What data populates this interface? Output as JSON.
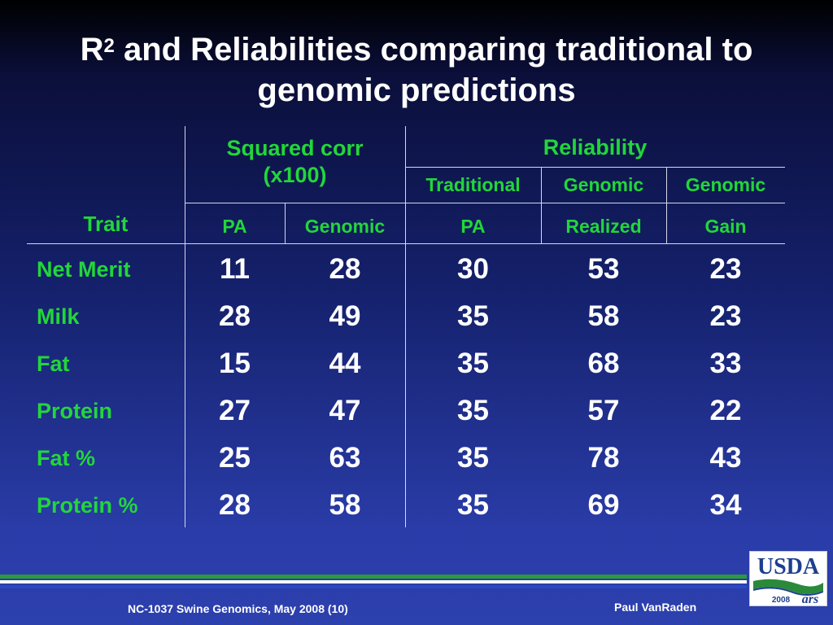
{
  "title": {
    "prefix": "R",
    "superscript": "2",
    "line1_rest": " and Reliabilities comparing traditional to",
    "line2": "genomic predictions"
  },
  "table": {
    "trait_header": "Trait",
    "group_headers": {
      "squared_corr_line1": "Squared corr",
      "squared_corr_line2": "(x100)",
      "reliability": "Reliability"
    },
    "sub_headers_row1": {
      "traditional": "Traditional",
      "genomic1": "Genomic",
      "genomic2": "Genomic"
    },
    "sub_headers_row2": {
      "pa1": "PA",
      "genomic": "Genomic",
      "pa2": "PA",
      "realized": "Realized",
      "gain": "Gain"
    },
    "rows": [
      {
        "trait": "Net Merit",
        "values": [
          "11",
          "28",
          "30",
          "53",
          "23"
        ]
      },
      {
        "trait": "Milk",
        "values": [
          "28",
          "49",
          "35",
          "58",
          "23"
        ]
      },
      {
        "trait": "Fat",
        "values": [
          "15",
          "44",
          "35",
          "68",
          "33"
        ]
      },
      {
        "trait": "Protein",
        "values": [
          "27",
          "47",
          "35",
          "57",
          "22"
        ]
      },
      {
        "trait": "Fat %",
        "values": [
          "25",
          "63",
          "35",
          "78",
          "43"
        ]
      },
      {
        "trait": "Protein %",
        "values": [
          "28",
          "58",
          "35",
          "69",
          "34"
        ]
      }
    ]
  },
  "footer": {
    "left": "NC-1037 Swine Genomics, May 2008 (10)",
    "right": "Paul VanRaden"
  },
  "logo": {
    "text": "USDA",
    "year": "2008",
    "ars": "ars"
  },
  "colors": {
    "header_green": "#22d63a",
    "background_top": "#000000",
    "background_bottom": "#2c40ae"
  }
}
